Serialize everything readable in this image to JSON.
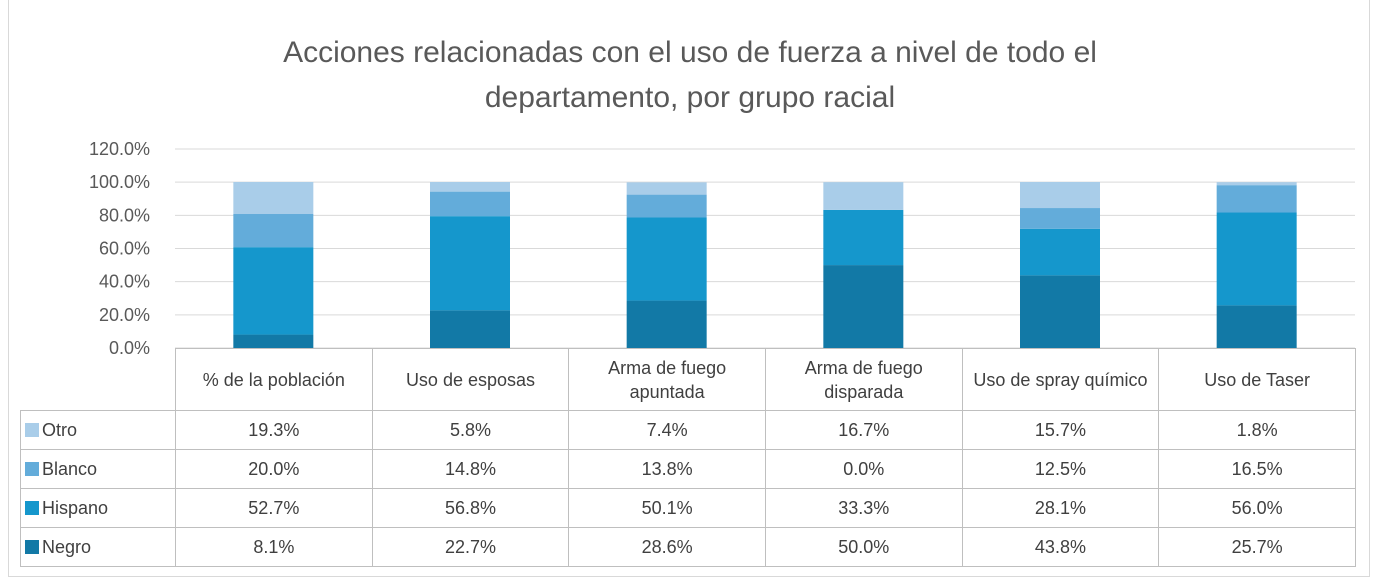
{
  "chart_data": {
    "type": "stacked_bar",
    "title": "Acciones relacionadas con el uso de fuerza a nivel de todo el departamento, por grupo racial",
    "categories": [
      "% de la población",
      "Uso de esposas",
      "Arma de fuego apuntada",
      "Arma de fuego disparada",
      "Uso de spray químico",
      "Uso de Taser"
    ],
    "series": [
      {
        "name": "Negro",
        "color": "#1279a6",
        "values": [
          8.1,
          22.7,
          28.6,
          50.0,
          43.8,
          25.7
        ],
        "value_labels": [
          "8.1%",
          "22.7%",
          "28.6%",
          "50.0%",
          "43.8%",
          "25.7%"
        ]
      },
      {
        "name": "Hispano",
        "color": "#1597cc",
        "values": [
          52.7,
          56.8,
          50.1,
          33.3,
          28.1,
          56.0
        ],
        "value_labels": [
          "52.7%",
          "56.8%",
          "50.1%",
          "33.3%",
          "28.1%",
          "56.0%"
        ]
      },
      {
        "name": "Blanco",
        "color": "#63acda",
        "values": [
          20.0,
          14.8,
          13.8,
          0.0,
          12.5,
          16.5
        ],
        "value_labels": [
          "20.0%",
          "14.8%",
          "13.8%",
          "0.0%",
          "12.5%",
          "16.5%"
        ]
      },
      {
        "name": "Otro",
        "color": "#a9cde9",
        "values": [
          19.3,
          5.8,
          7.4,
          16.7,
          15.7,
          1.8
        ],
        "value_labels": [
          "19.3%",
          "5.8%",
          "7.4%",
          "16.7%",
          "15.7%",
          "1.8%"
        ]
      }
    ],
    "ylim": [
      0,
      120
    ],
    "yticks": [
      {
        "value": 0,
        "label": "0.0%"
      },
      {
        "value": 20,
        "label": "20.0%"
      },
      {
        "value": 40,
        "label": "40.0%"
      },
      {
        "value": 60,
        "label": "60.0%"
      },
      {
        "value": 80,
        "label": "80.0%"
      },
      {
        "value": 100,
        "label": "100.0%"
      },
      {
        "value": 120,
        "label": "120.0%"
      }
    ],
    "grid": true
  }
}
